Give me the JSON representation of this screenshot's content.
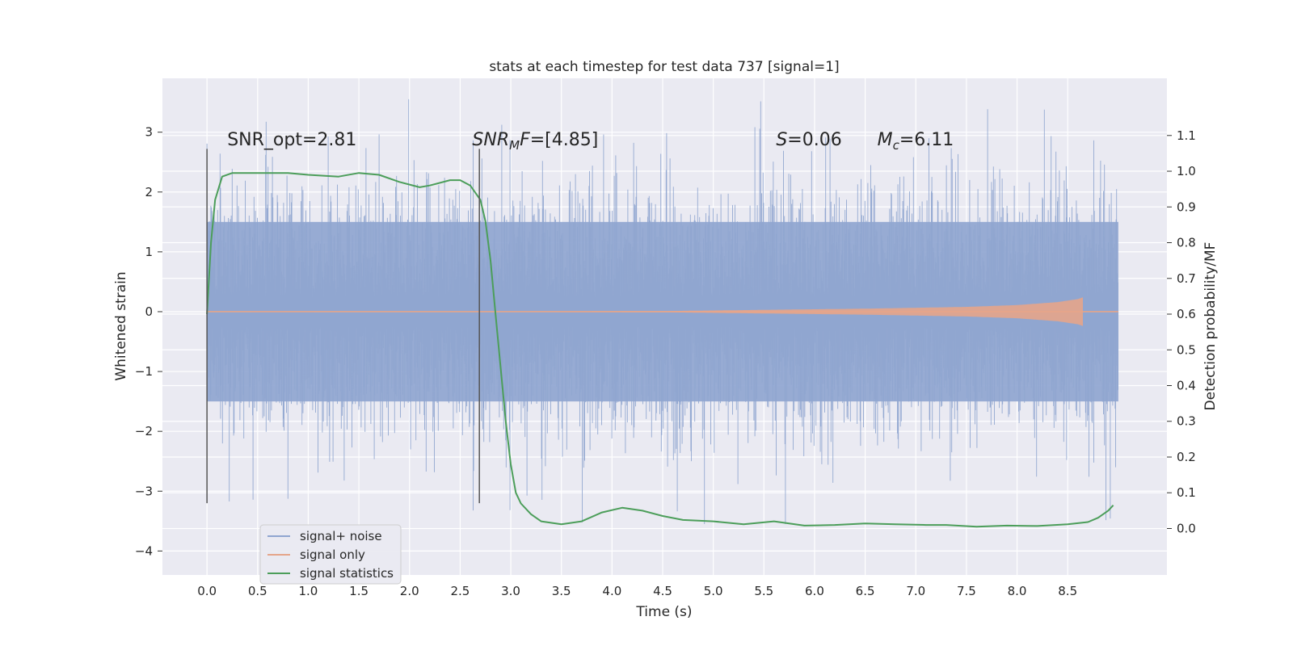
{
  "chart_data": {
    "type": "line",
    "title": "stats at each timestep for test data 737 [signal=1]",
    "xlabel": "Time (s)",
    "ylabel": "Whitened strain",
    "ylabel_right": "Detection probability/MF",
    "xlim": [
      -0.44,
      9.48
    ],
    "ylim": [
      -4.4,
      3.9
    ],
    "ylim_right": [
      -0.13,
      1.26
    ],
    "x_ticks": [
      0.0,
      0.5,
      1.0,
      1.5,
      2.0,
      2.5,
      3.0,
      3.5,
      4.0,
      4.5,
      5.0,
      5.5,
      6.0,
      6.5,
      7.0,
      7.5,
      8.0,
      8.5
    ],
    "x_tick_labels": [
      "0.0",
      "0.5",
      "1.0",
      "1.5",
      "2.0",
      "2.5",
      "3.0",
      "3.5",
      "4.0",
      "4.5",
      "5.0",
      "5.5",
      "6.0",
      "6.5",
      "7.0",
      "7.5",
      "8.0",
      "8.5"
    ],
    "y_ticks": [
      3,
      2,
      1,
      0,
      -1,
      -2,
      -3,
      -4
    ],
    "y_tick_labels": [
      "3",
      "2",
      "1",
      "0",
      "−1",
      "−2",
      "−3",
      "−4"
    ],
    "y_ticks_right": [
      1.1,
      1.0,
      0.9,
      0.8,
      0.7,
      0.6,
      0.5,
      0.4,
      0.3,
      0.2,
      0.1,
      0.0
    ],
    "y_tick_labels_right": [
      "1.1",
      "1.0",
      "0.9",
      "0.8",
      "0.7",
      "0.6",
      "0.5",
      "0.4",
      "0.3",
      "0.2",
      "0.1",
      "0.0"
    ],
    "grid": true,
    "legend_position": "lower-left",
    "series": [
      {
        "name": "signal+ noise",
        "kind": "noise-band",
        "axis": "left",
        "color": "#8fa5d0",
        "x_range": [
          0.0,
          9.0
        ],
        "dense_band": [
          -1.5,
          1.5
        ],
        "typical_peaks": [
          2.5,
          -2.6
        ],
        "max": 3.55,
        "min": -3.55
      },
      {
        "name": "signal only",
        "kind": "chirp",
        "axis": "left",
        "color": "#e5a58a",
        "x_range": [
          0.0,
          9.0
        ],
        "merger_time": 8.65,
        "envelope": {
          "x": [
            0.0,
            4.5,
            5.5,
            6.5,
            7.5,
            8.0,
            8.4,
            8.6,
            8.65,
            8.7,
            9.0
          ],
          "amp": [
            0.0,
            0.01,
            0.03,
            0.05,
            0.08,
            0.11,
            0.16,
            0.21,
            0.24,
            0.0,
            0.0
          ]
        }
      },
      {
        "name": "signal statistics",
        "kind": "line",
        "axis": "right",
        "color": "#4c9e5a",
        "x": [
          0.0,
          0.04,
          0.08,
          0.15,
          0.25,
          0.5,
          0.8,
          1.0,
          1.3,
          1.5,
          1.7,
          1.9,
          2.1,
          2.2,
          2.4,
          2.5,
          2.6,
          2.7,
          2.75,
          2.8,
          2.85,
          2.9,
          2.95,
          3.0,
          3.05,
          3.1,
          3.2,
          3.3,
          3.5,
          3.7,
          3.9,
          4.1,
          4.3,
          4.5,
          4.7,
          5.0,
          5.3,
          5.6,
          5.9,
          6.2,
          6.5,
          6.8,
          7.1,
          7.3,
          7.6,
          7.9,
          8.2,
          8.5,
          8.7,
          8.8,
          8.9,
          8.95
        ],
        "values": [
          0.6,
          0.8,
          0.92,
          0.985,
          0.995,
          0.995,
          0.995,
          0.99,
          0.985,
          0.995,
          0.99,
          0.97,
          0.955,
          0.96,
          0.975,
          0.975,
          0.96,
          0.92,
          0.86,
          0.75,
          0.6,
          0.45,
          0.3,
          0.18,
          0.1,
          0.07,
          0.04,
          0.02,
          0.012,
          0.02,
          0.045,
          0.058,
          0.05,
          0.035,
          0.024,
          0.02,
          0.012,
          0.02,
          0.008,
          0.01,
          0.014,
          0.012,
          0.01,
          0.01,
          0.005,
          0.008,
          0.007,
          0.012,
          0.018,
          0.03,
          0.05,
          0.065
        ]
      }
    ],
    "vertical_lines": [
      {
        "x": 0.0,
        "y_from": -3.2,
        "y_to": 2.72
      },
      {
        "x": 2.69,
        "y_from": -3.2,
        "y_to": 2.72
      }
    ],
    "annotations": [
      {
        "name": "snr-opt",
        "x": 0.2,
        "y": 2.78,
        "parts": [
          {
            "t": "SNR_opt=2.81"
          }
        ]
      },
      {
        "name": "snr-mf",
        "x": 2.62,
        "y": 2.78,
        "parts": [
          {
            "t": "SNR",
            "it": true
          },
          {
            "t": "M",
            "it": true,
            "sub": true
          },
          {
            "t": "F",
            "it": true
          },
          {
            "t": "=[4.85]"
          }
        ]
      },
      {
        "name": "spin-s",
        "x": 5.62,
        "y": 2.78,
        "parts": [
          {
            "t": "S",
            "it": true
          },
          {
            "t": "=0.06"
          }
        ]
      },
      {
        "name": "chirp-mass",
        "x": 6.62,
        "y": 2.78,
        "parts": [
          {
            "t": "M",
            "it": true
          },
          {
            "t": "c",
            "it": true,
            "sub": true
          },
          {
            "t": "=6.11"
          }
        ]
      }
    ]
  }
}
